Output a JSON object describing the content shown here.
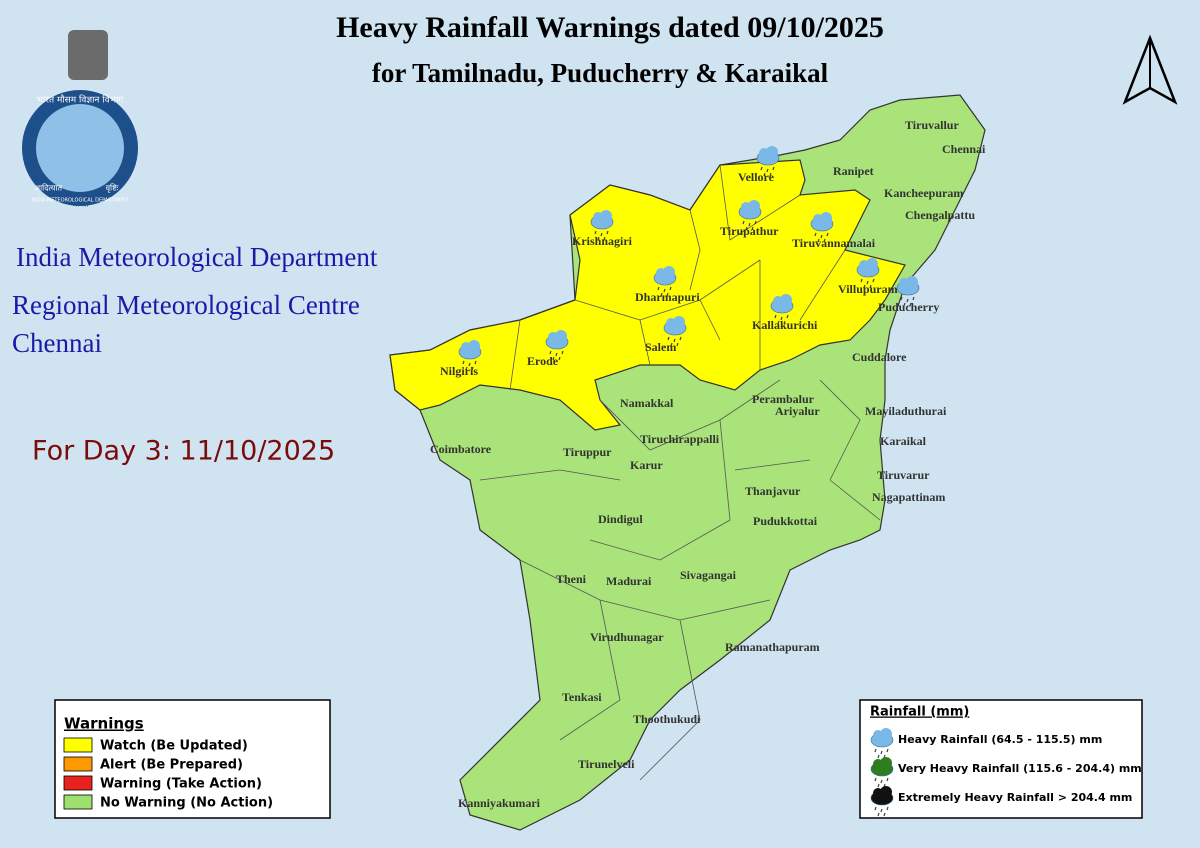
{
  "header": {
    "title": "Heavy Rainfall Warnings dated 09/10/2025",
    "subtitle": "for Tamilnadu, Puducherry & Karaikal"
  },
  "logo": {
    "hindi": "भारत मौसम विज्ञान विभाग",
    "english": "INDIA METEOROLOGICAL DEPARTMENT",
    "motto_left": "आदित्यात",
    "motto_right": "वृष्टिः",
    "motto_bottom": "जायते"
  },
  "organization": {
    "name": "India Meteorological Department",
    "centre": "Regional Meteorological Centre",
    "city": "Chennai"
  },
  "day_label": "For Day 3: 11/10/2025",
  "districts": [
    {
      "name": "Tiruvallur",
      "heavy_rain": false
    },
    {
      "name": "Chennai",
      "heavy_rain": false
    },
    {
      "name": "Ranipet",
      "heavy_rain": false
    },
    {
      "name": "Kancheepuram",
      "heavy_rain": false
    },
    {
      "name": "Chengalpattu",
      "heavy_rain": false
    },
    {
      "name": "Vellore",
      "heavy_rain": true
    },
    {
      "name": "Krishnagiri",
      "heavy_rain": true
    },
    {
      "name": "Tirupathur",
      "heavy_rain": true
    },
    {
      "name": "Tiruvannamalai",
      "heavy_rain": true
    },
    {
      "name": "Dharmapuri",
      "heavy_rain": true
    },
    {
      "name": "Villupuram",
      "heavy_rain": true
    },
    {
      "name": "Puducherry",
      "heavy_rain": true
    },
    {
      "name": "Kallakurichi",
      "heavy_rain": true
    },
    {
      "name": "Salem",
      "heavy_rain": true
    },
    {
      "name": "Erode",
      "heavy_rain": true
    },
    {
      "name": "Nilgiris",
      "heavy_rain": true
    },
    {
      "name": "Cuddalore",
      "heavy_rain": false
    },
    {
      "name": "Namakkal",
      "heavy_rain": false
    },
    {
      "name": "Perambalur",
      "heavy_rain": false
    },
    {
      "name": "Ariyalur",
      "heavy_rain": false
    },
    {
      "name": "Mayiladuthurai",
      "heavy_rain": false
    },
    {
      "name": "Coimbatore",
      "heavy_rain": false
    },
    {
      "name": "Tiruppur",
      "heavy_rain": false
    },
    {
      "name": "Tiruchirappalli",
      "heavy_rain": false
    },
    {
      "name": "Karur",
      "heavy_rain": false
    },
    {
      "name": "Karaikal",
      "heavy_rain": false
    },
    {
      "name": "Tiruvarur",
      "heavy_rain": false
    },
    {
      "name": "Nagapattinam",
      "heavy_rain": false
    },
    {
      "name": "Thanjavur",
      "heavy_rain": false
    },
    {
      "name": "Pudukkottai",
      "heavy_rain": false
    },
    {
      "name": "Dindigul",
      "heavy_rain": false
    },
    {
      "name": "Theni",
      "heavy_rain": false
    },
    {
      "name": "Madurai",
      "heavy_rain": false
    },
    {
      "name": "Sivagangai",
      "heavy_rain": false
    },
    {
      "name": "Virudhunagar",
      "heavy_rain": false
    },
    {
      "name": "Ramanathapuram",
      "heavy_rain": false
    },
    {
      "name": "Tenkasi",
      "heavy_rain": false
    },
    {
      "name": "Thoothukudi",
      "heavy_rain": false
    },
    {
      "name": "Tirunelveli",
      "heavy_rain": false
    },
    {
      "name": "Kanniyakumari",
      "heavy_rain": false
    }
  ],
  "warnings_legend": {
    "title": "Warnings",
    "items": [
      {
        "label": "Watch (Be Updated)",
        "color": "#ffff00"
      },
      {
        "label": "Alert (Be Prepared)",
        "color": "#ff9900"
      },
      {
        "label": "Warning (Take Action)",
        "color": "#e8231f"
      },
      {
        "label": "No Warning (No Action)",
        "color": "#9ee06e"
      }
    ]
  },
  "rainfall_legend": {
    "title": "Rainfall (mm)",
    "items": [
      {
        "label": "Heavy Rainfall (64.5 - 115.5) mm",
        "color": "#7ab8e8"
      },
      {
        "label": "Very Heavy Rainfall (115.6 - 204.4) mm",
        "color": "#2e7d1f"
      },
      {
        "label": "Extremely Heavy Rainfall > 204.4 mm",
        "color": "#111111"
      }
    ]
  }
}
